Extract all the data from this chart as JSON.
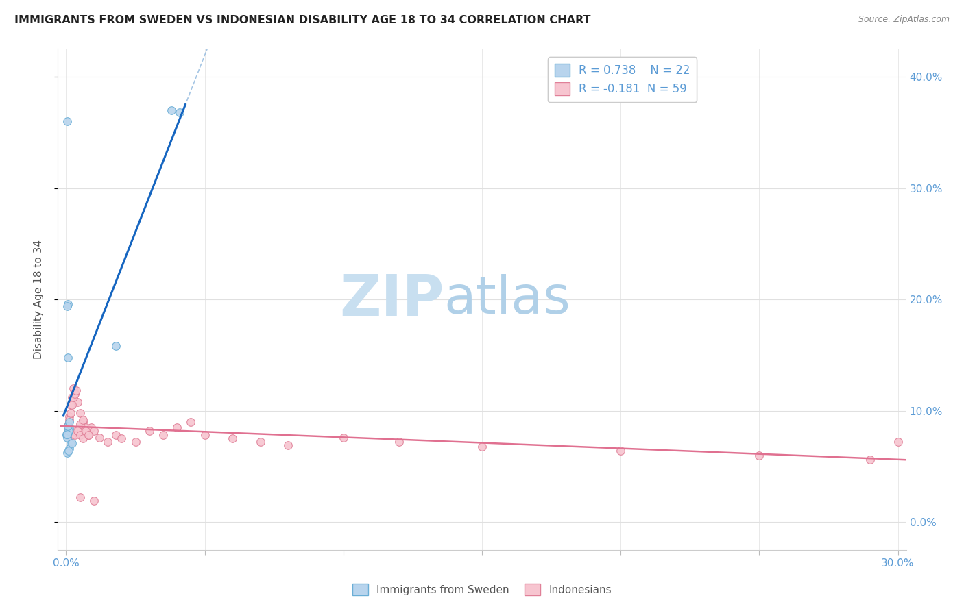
{
  "title": "IMMIGRANTS FROM SWEDEN VS INDONESIAN DISABILITY AGE 18 TO 34 CORRELATION CHART",
  "source": "Source: ZipAtlas.com",
  "ylabel": "Disability Age 18 to 34",
  "legend1_label": "Immigrants from Sweden",
  "legend2_label": "Indonesians",
  "r1": "0.738",
  "n1": "22",
  "r2": "-0.181",
  "n2": "59",
  "color_sweden_fill": "#b8d4ed",
  "color_sweden_edge": "#6aaed6",
  "color_indonesian_fill": "#f7c5d0",
  "color_indonesian_edge": "#e08098",
  "color_line_sweden": "#1565c0",
  "color_line_sweden_dash": "#90b8de",
  "color_line_indonesian": "#e07090",
  "watermark_zip_color": "#c8dff0",
  "watermark_atlas_color": "#b0d0e8",
  "title_color": "#222222",
  "source_color": "#888888",
  "tick_color": "#5b9bd5",
  "ylabel_color": "#555555",
  "grid_color": "#e0e0e0",
  "background": "#ffffff",
  "sweden_x": [
    0.0002,
    0.0005,
    0.0008,
    0.0003,
    0.0006,
    0.0004,
    0.0005,
    0.0002,
    0.001,
    0.0008,
    0.0015,
    0.0012,
    0.0006,
    0.0003,
    0.0008,
    0.0004,
    0.001,
    0.0003,
    0.038,
    0.041,
    0.018,
    0.0022
  ],
  "sweden_y": [
    0.078,
    0.08,
    0.082,
    0.076,
    0.196,
    0.194,
    0.148,
    0.079,
    0.084,
    0.082,
    0.07,
    0.066,
    0.086,
    0.062,
    0.064,
    0.079,
    0.09,
    0.36,
    0.37,
    0.368,
    0.158,
    0.071
  ],
  "indonesian_x": [
    0.0005,
    0.0008,
    0.0012,
    0.0015,
    0.002,
    0.0025,
    0.003,
    0.004,
    0.005,
    0.006,
    0.007,
    0.008,
    0.001,
    0.0015,
    0.002,
    0.0025,
    0.003,
    0.0035,
    0.004,
    0.005,
    0.006,
    0.007,
    0.008,
    0.009,
    0.01,
    0.012,
    0.015,
    0.018,
    0.02,
    0.025,
    0.03,
    0.035,
    0.04,
    0.045,
    0.05,
    0.06,
    0.07,
    0.08,
    0.0003,
    0.0006,
    0.001,
    0.0015,
    0.002,
    0.0025,
    0.003,
    0.004,
    0.005,
    0.006,
    0.007,
    0.008,
    0.1,
    0.12,
    0.15,
    0.2,
    0.25,
    0.29,
    0.005,
    0.01,
    0.3
  ],
  "indonesian_y": [
    0.082,
    0.088,
    0.095,
    0.105,
    0.112,
    0.12,
    0.116,
    0.108,
    0.098,
    0.09,
    0.085,
    0.08,
    0.092,
    0.098,
    0.105,
    0.112,
    0.115,
    0.118,
    0.083,
    0.088,
    0.092,
    0.08,
    0.078,
    0.085,
    0.082,
    0.076,
    0.072,
    0.078,
    0.075,
    0.072,
    0.082,
    0.078,
    0.085,
    0.09,
    0.078,
    0.075,
    0.072,
    0.069,
    0.08,
    0.082,
    0.078,
    0.084,
    0.078,
    0.082,
    0.078,
    0.082,
    0.078,
    0.075,
    0.082,
    0.078,
    0.076,
    0.072,
    0.068,
    0.064,
    0.06,
    0.056,
    0.022,
    0.019,
    0.072
  ],
  "xlim": [
    -0.003,
    0.303
  ],
  "ylim": [
    -0.025,
    0.425
  ],
  "yticks": [
    0.0,
    0.1,
    0.2,
    0.3,
    0.4
  ]
}
